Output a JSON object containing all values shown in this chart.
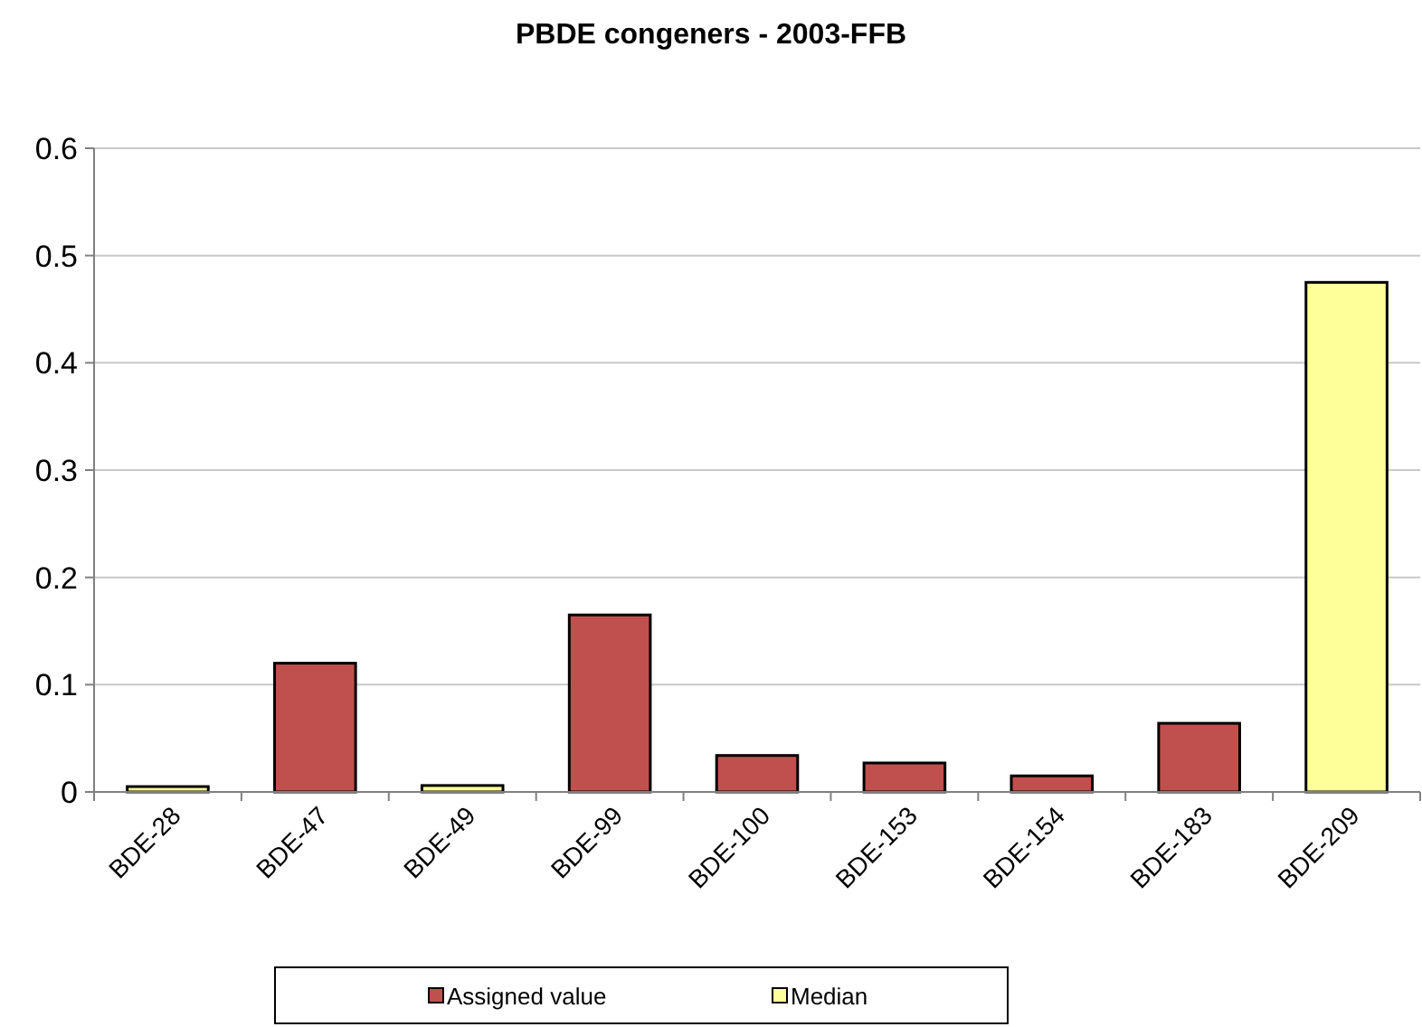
{
  "chart_data": {
    "type": "bar",
    "title": "PBDE congeners - 2003-FFB",
    "categories": [
      "BDE-28",
      "BDE-47",
      "BDE-49",
      "BDE-99",
      "BDE-100",
      "BDE-153",
      "BDE-154",
      "BDE-183",
      "BDE-209"
    ],
    "series": [
      {
        "name": "Assigned value",
        "color": "#c0504d",
        "values": [
          null,
          0.12,
          null,
          0.165,
          0.034,
          0.027,
          0.015,
          0.064,
          null
        ]
      },
      {
        "name": "Median",
        "color": "#ffff99",
        "values": [
          0.005,
          null,
          0.006,
          null,
          null,
          null,
          null,
          null,
          0.475
        ]
      }
    ],
    "stacked": true,
    "ylim": [
      0,
      0.6
    ],
    "yticks": [
      0,
      0.1,
      0.2,
      0.3,
      0.4,
      0.5,
      0.6
    ],
    "grid": "y",
    "legend": "bottom"
  }
}
